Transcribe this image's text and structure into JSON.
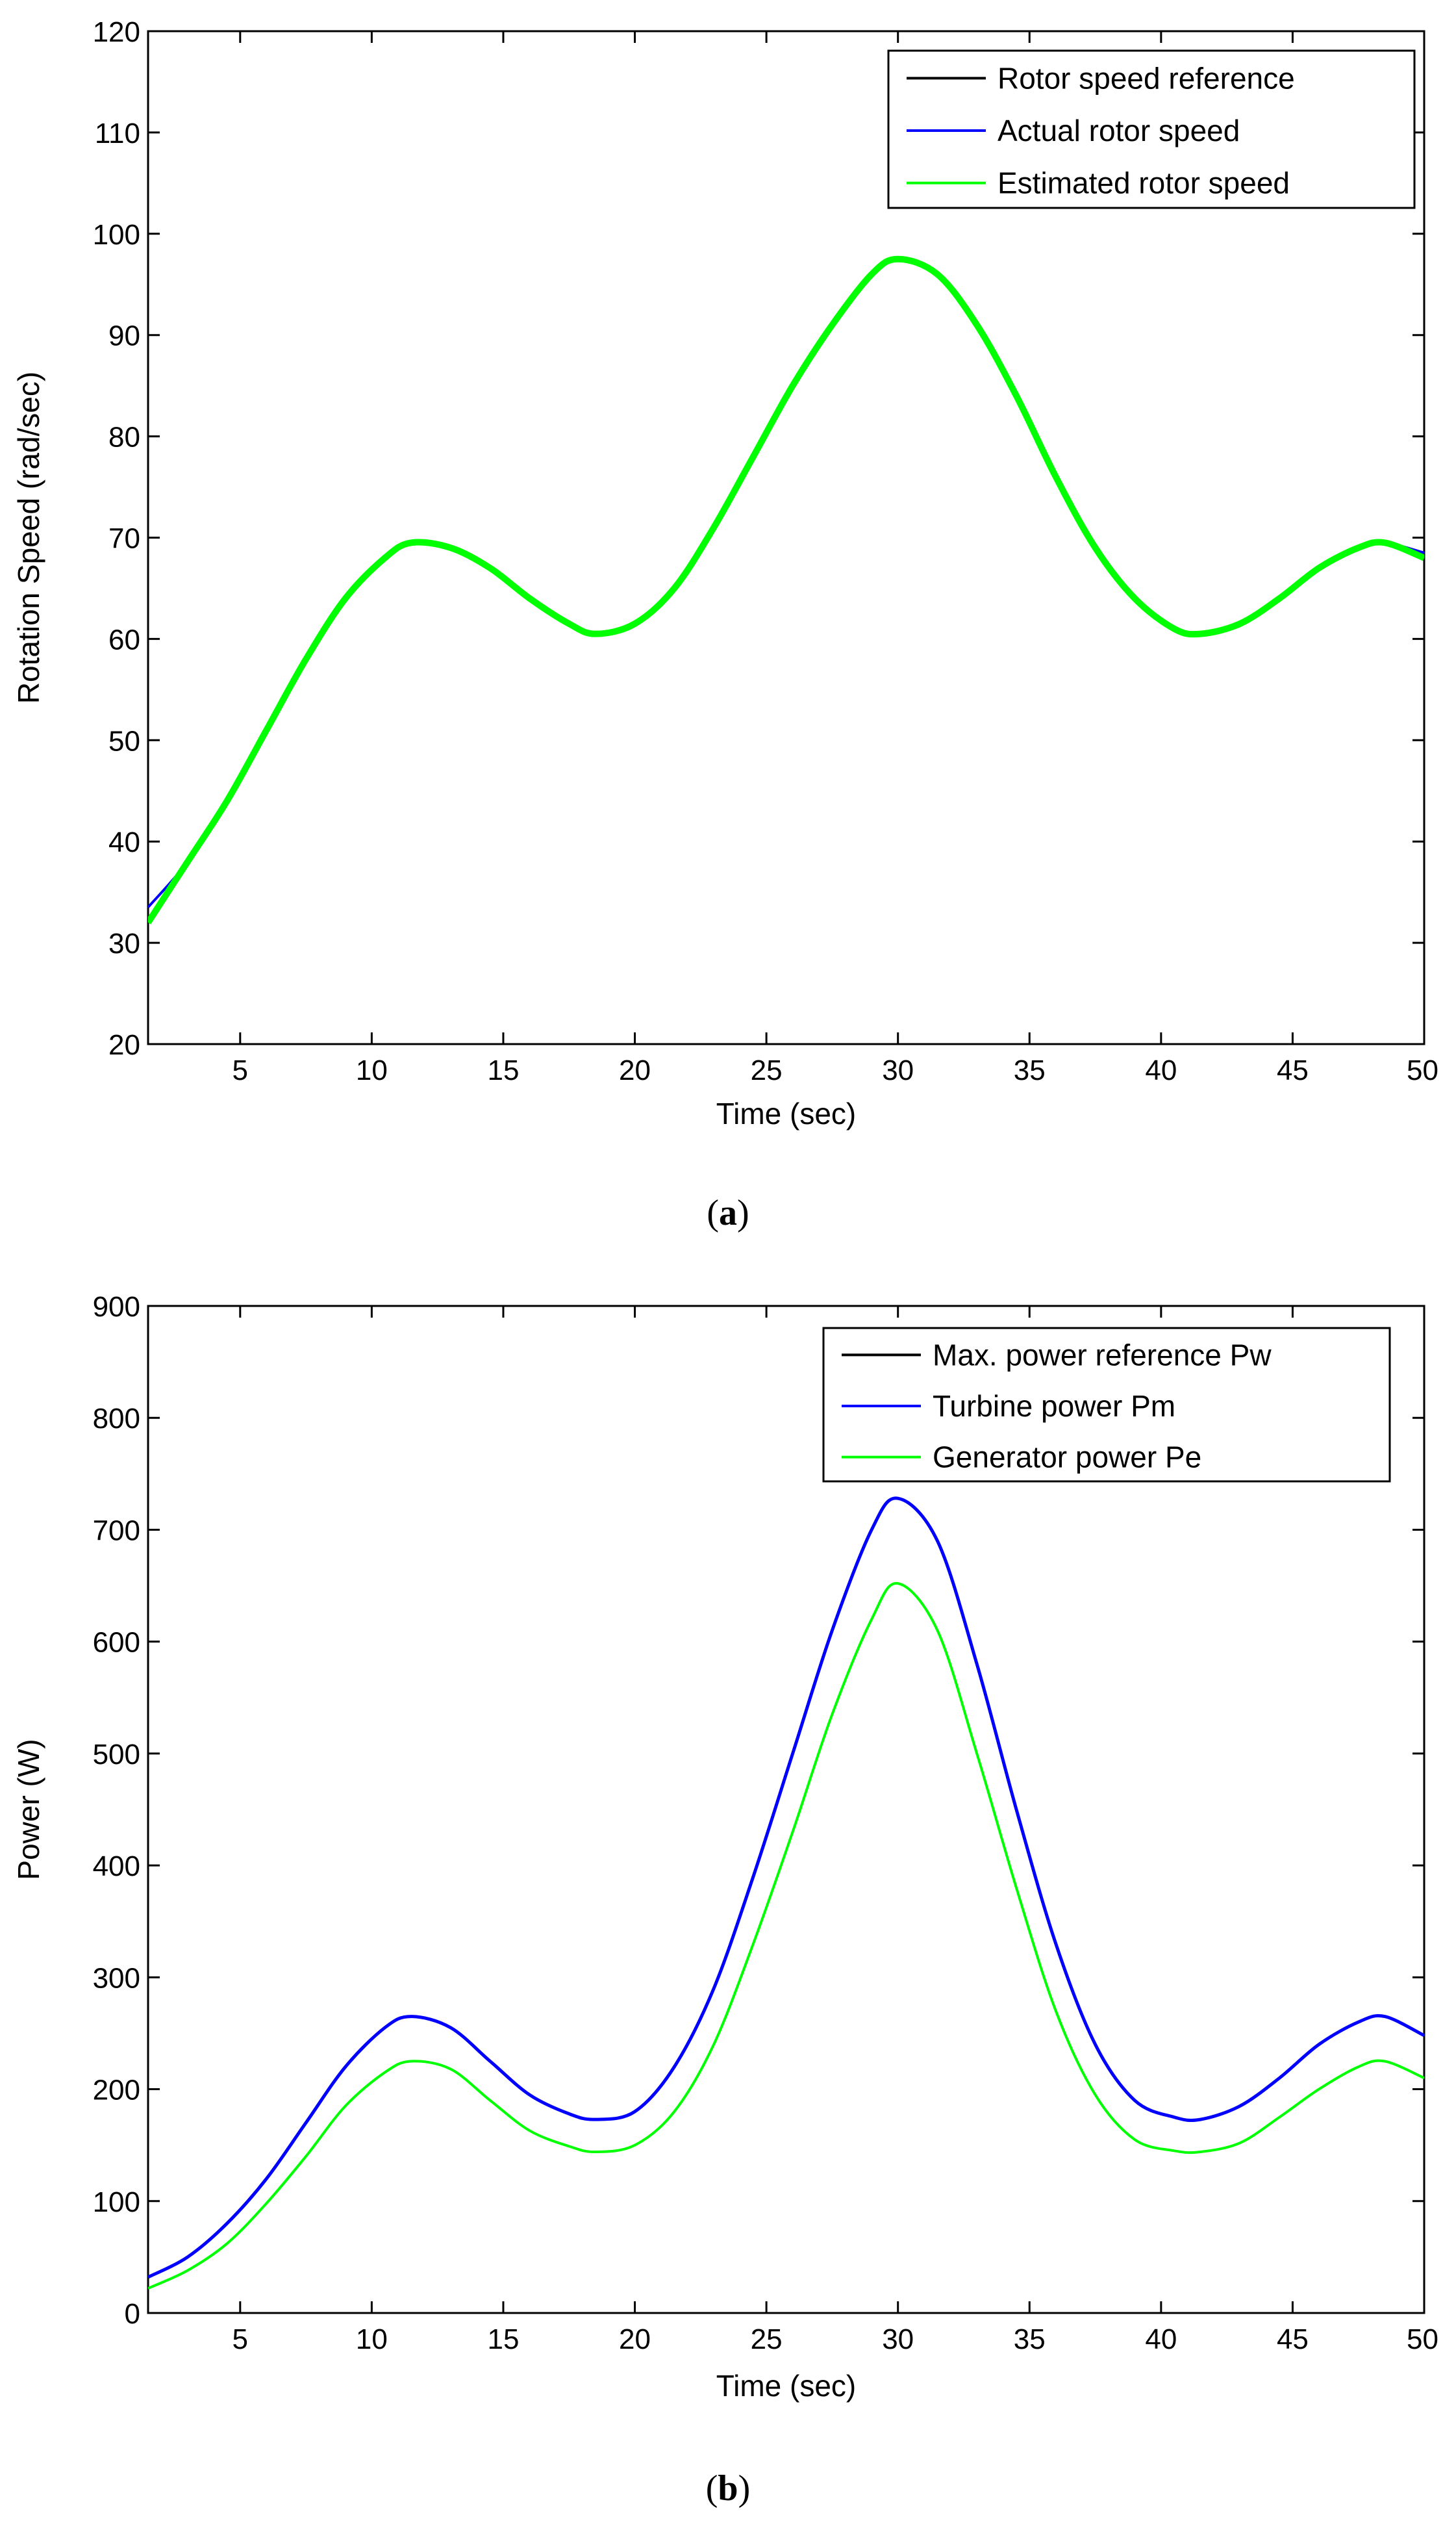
{
  "chart_data": [
    {
      "type": "line",
      "caption_letter": "a",
      "xlabel": "Time (sec)",
      "ylabel": "Rotation Speed (rad/sec)",
      "xlim": [
        1.5,
        50
      ],
      "ylim": [
        20,
        120
      ],
      "xticks": [
        5,
        10,
        15,
        20,
        25,
        30,
        35,
        40,
        45,
        50
      ],
      "yticks": [
        20,
        30,
        40,
        50,
        60,
        70,
        80,
        90,
        100,
        110,
        120
      ],
      "legend_position": "top-right",
      "x": [
        1.5,
        3,
        4.5,
        6,
        7.5,
        9,
        10.5,
        11.5,
        13,
        14.5,
        16,
        17.5,
        18.5,
        20,
        21.5,
        23,
        24.5,
        26,
        27.5,
        29,
        30,
        31.5,
        33,
        34.5,
        36,
        37.5,
        39,
        40.5,
        41.5,
        43,
        44.5,
        46,
        47.5,
        48.5,
        50
      ],
      "series": [
        {
          "name": "Rotor speed reference",
          "color": "#000000",
          "width": 3,
          "values": [
            33.5,
            38,
            44,
            51,
            58,
            64,
            68,
            69.5,
            69,
            67,
            64,
            61.5,
            60.5,
            61.5,
            65,
            71,
            78,
            85,
            91,
            96,
            97.5,
            96,
            91,
            84,
            76,
            69,
            64,
            61,
            60.5,
            61.5,
            64,
            67,
            69,
            69.5,
            68.5
          ]
        },
        {
          "name": "Actual rotor speed",
          "color": "#0000ff",
          "width": 4,
          "values": [
            33.5,
            38,
            44,
            51,
            58,
            64,
            68,
            69.5,
            69,
            67,
            64,
            61.5,
            60.5,
            61.5,
            65,
            71,
            78,
            85,
            91,
            96,
            97.5,
            96,
            91,
            84,
            76,
            69,
            64,
            61,
            60.5,
            61.5,
            64,
            67,
            69,
            69.5,
            68.5
          ]
        },
        {
          "name": "Estimated rotor speed",
          "color": "#00ff00",
          "width": 10,
          "values": [
            32,
            38,
            44,
            51,
            58,
            64,
            68,
            69.5,
            69,
            67,
            64,
            61.5,
            60.5,
            61.5,
            65,
            71,
            78,
            85,
            91,
            96,
            97.5,
            96,
            91,
            84,
            76,
            69,
            64,
            61,
            60.5,
            61.5,
            64,
            67,
            69,
            69.5,
            68
          ]
        }
      ]
    },
    {
      "type": "line",
      "caption_letter": "b",
      "xlabel": "Time (sec)",
      "ylabel": "Power (W)",
      "xlim": [
        1.5,
        50
      ],
      "ylim": [
        0,
        900
      ],
      "xticks": [
        5,
        10,
        15,
        20,
        25,
        30,
        35,
        40,
        45,
        50
      ],
      "yticks": [
        0,
        100,
        200,
        300,
        400,
        500,
        600,
        700,
        800,
        900
      ],
      "legend_position": "top-right",
      "x": [
        1.5,
        3,
        4.5,
        6,
        7.5,
        9,
        10.5,
        11.5,
        13,
        14.5,
        16,
        17.5,
        18.5,
        20,
        21.5,
        23,
        24.5,
        26,
        27.5,
        29,
        30,
        31.5,
        33,
        34.5,
        36,
        37.5,
        39,
        40.5,
        41.5,
        43,
        44.5,
        46,
        47.5,
        48.5,
        50
      ],
      "series": [
        {
          "name": "Max. power reference Pw",
          "color": "#000000",
          "width": 3,
          "values": [
            32,
            50,
            80,
            120,
            170,
            220,
            255,
            265,
            255,
            225,
            195,
            178,
            173,
            180,
            220,
            290,
            390,
            500,
            610,
            700,
            728,
            690,
            580,
            450,
            330,
            240,
            190,
            175,
            173,
            185,
            210,
            240,
            260,
            265,
            248
          ]
        },
        {
          "name": "Turbine power Pm",
          "color": "#0000ff",
          "width": 5,
          "values": [
            32,
            50,
            80,
            120,
            170,
            220,
            255,
            265,
            255,
            225,
            195,
            178,
            173,
            180,
            220,
            290,
            390,
            500,
            610,
            700,
            728,
            690,
            580,
            450,
            330,
            240,
            190,
            175,
            173,
            185,
            210,
            240,
            260,
            265,
            248
          ]
        },
        {
          "name": "Generator power Pe",
          "color": "#00ff00",
          "width": 4,
          "values": [
            22,
            38,
            62,
            98,
            140,
            185,
            215,
            225,
            218,
            190,
            163,
            149,
            144,
            150,
            180,
            240,
            330,
            430,
            535,
            620,
            652,
            610,
            500,
            380,
            270,
            195,
            155,
            145,
            144,
            152,
            175,
            200,
            220,
            225,
            210
          ]
        }
      ]
    }
  ]
}
